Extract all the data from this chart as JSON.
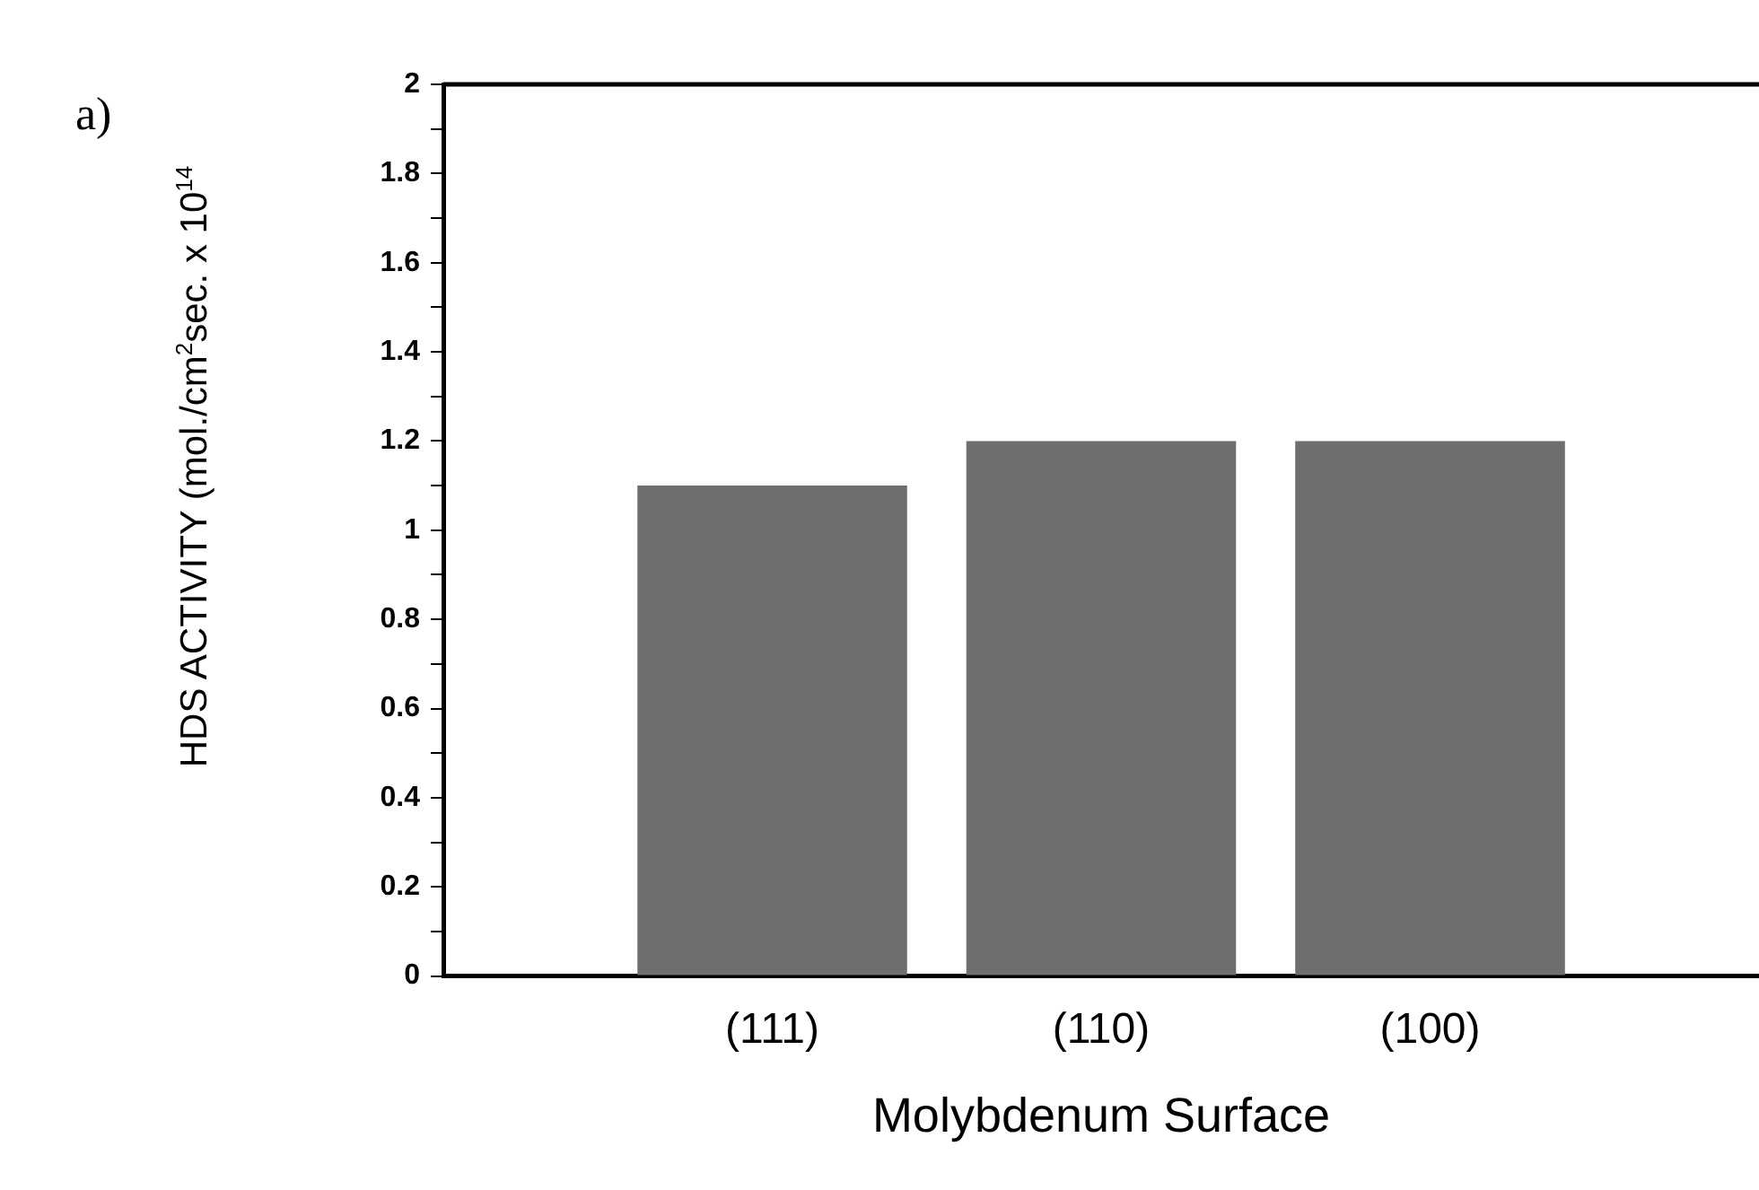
{
  "chart_data": {
    "type": "bar",
    "xlabel": "Molybdenum Surface",
    "ylabel": "HDS ACTIVITY (mol./cm$^{2}$sec. x 10$^{14}$",
    "annotations": [
      "a)"
    ],
    "categories": [
      "(111)",
      "(110)",
      "(100)"
    ],
    "values": [
      1.1,
      1.2,
      1.2
    ],
    "color": "#6e6e6e",
    "ylim": [
      0,
      2
    ],
    "yticks": [
      0,
      {
        "value": 0.1,
        "label": null
      },
      0.2,
      {
        "value": 0.3,
        "label": null
      },
      0.4,
      {
        "value": 0.5,
        "label": null
      },
      0.6,
      {
        "value": 0.7,
        "label": null
      },
      0.8,
      {
        "value": 0.9,
        "label": null
      },
      1,
      {
        "value": 1.1,
        "label": null
      },
      1.2,
      {
        "value": 1.3,
        "label": null
      },
      1.4,
      {
        "value": 1.5,
        "label": null
      },
      1.6,
      {
        "value": 1.7,
        "label": null
      },
      1.8,
      {
        "value": 1.9,
        "label": null
      },
      2
    ],
    "grid": false
  }
}
